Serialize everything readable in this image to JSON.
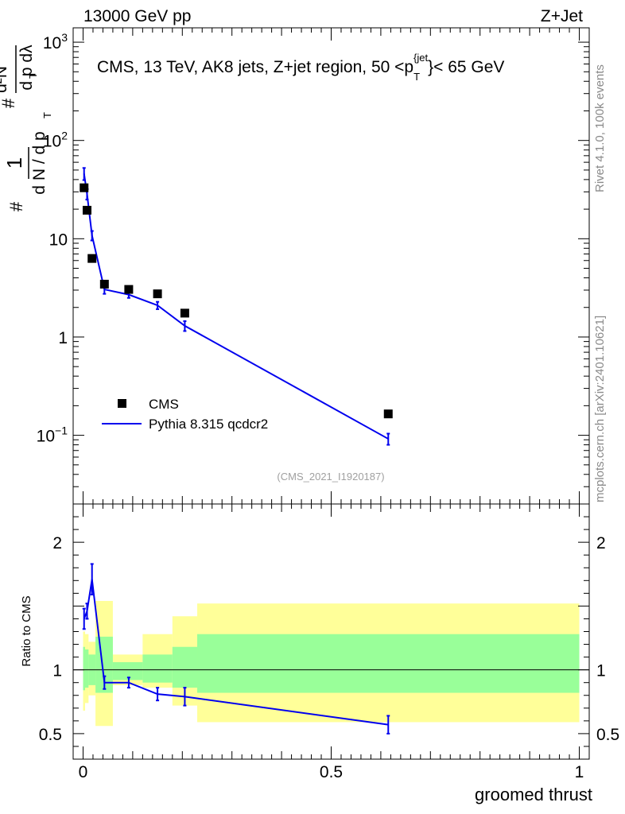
{
  "header": {
    "left": "13000 GeV pp",
    "right": "Z+Jet"
  },
  "side_labels": {
    "rivet": "Rivet 4.1.0,  100k events",
    "mcplots": "mcplots.cern.ch [arXiv:2401.10621]"
  },
  "analysis_id": "(CMS_2021_I1920187)",
  "colors": {
    "data": "#000000",
    "mc": "#0000ee",
    "band_outer": "#ffff99",
    "band_inner": "#99ff99"
  },
  "chart_data": [
    {
      "type": "scatter",
      "title": "CMS, 13 TeV, AK8 jets, Z+jet region, 50 <p_T^{jet}< 65 GeV",
      "ylabel": "1/(dN/dp_T) · d²N/(dp_T dλ)",
      "yscale": "log",
      "xlim": [
        -0.02,
        1.02
      ],
      "ylim": [
        0.02,
        1400
      ],
      "ytick_labels": [
        "10^-1",
        "1",
        "10",
        "10^2",
        "10^3"
      ],
      "series": [
        {
          "name": "CMS",
          "style": "markers",
          "x": [
            0.002,
            0.008,
            0.018,
            0.043,
            0.092,
            0.15,
            0.205,
            0.615
          ],
          "y": [
            33.0,
            19.5,
            6.3,
            3.45,
            3.05,
            2.75,
            1.75,
            0.165
          ]
        },
        {
          "name": "Pythia 8.315 qcdcr2",
          "style": "line",
          "x": [
            0.002,
            0.008,
            0.018,
            0.043,
            0.092,
            0.15,
            0.205,
            0.615
          ],
          "y": [
            46.0,
            28.5,
            10.8,
            3.05,
            2.7,
            2.1,
            1.3,
            0.092
          ],
          "err": [
            6.5,
            3.5,
            1.2,
            0.3,
            0.2,
            0.18,
            0.15,
            0.012
          ]
        }
      ]
    },
    {
      "type": "line",
      "xlabel": "groomed thrust",
      "ylabel": "Ratio to CMS",
      "xlim": [
        -0.02,
        1.02
      ],
      "ylim": [
        0.3,
        2.3
      ],
      "xtick_labels": [
        "0",
        "0.5",
        "1"
      ],
      "ytick_labels": [
        "0.5",
        "1",
        "2"
      ],
      "reference": 1.0,
      "bands": {
        "edges": [
          0.0,
          0.004,
          0.011,
          0.025,
          0.06,
          0.12,
          0.18,
          0.23,
          1.0
        ],
        "outer_lo": [
          0.68,
          0.74,
          0.8,
          0.56,
          0.88,
          0.86,
          0.72,
          0.59
        ],
        "outer_hi": [
          1.3,
          1.28,
          1.22,
          1.54,
          1.12,
          1.28,
          1.42,
          1.52
        ],
        "inner_lo": [
          0.84,
          0.86,
          0.88,
          0.82,
          0.92,
          0.9,
          0.86,
          0.82
        ],
        "inner_hi": [
          1.18,
          1.16,
          1.12,
          1.26,
          1.06,
          1.12,
          1.18,
          1.28
        ]
      },
      "series": [
        {
          "name": "Pythia 8.315 qcdcr2",
          "x": [
            0.002,
            0.008,
            0.018,
            0.043,
            0.092,
            0.15,
            0.205,
            0.615
          ],
          "y": [
            1.4,
            1.46,
            1.71,
            0.9,
            0.9,
            0.81,
            0.79,
            0.57
          ],
          "err": [
            0.08,
            0.06,
            0.12,
            0.05,
            0.04,
            0.05,
            0.07,
            0.07
          ]
        }
      ]
    }
  ]
}
